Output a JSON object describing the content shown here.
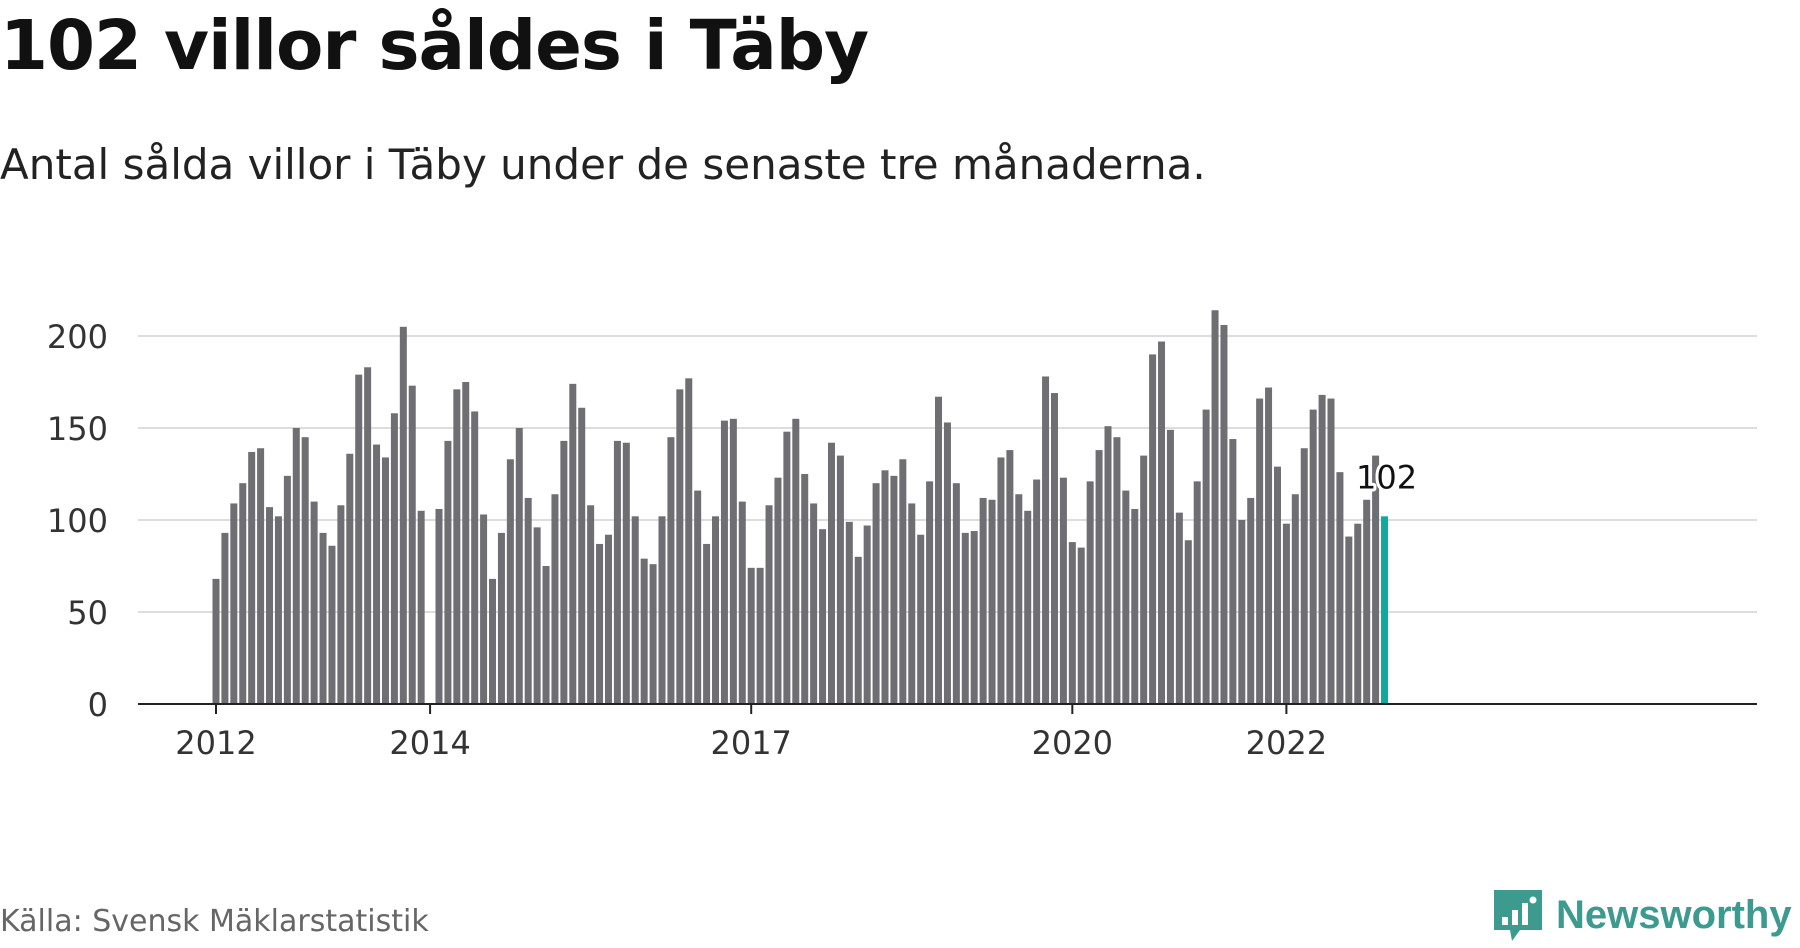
{
  "title": "102 villor såldes i Täby",
  "subtitle": "Antal sålda villor i Täby under de senaste tre månaderna.",
  "source": "Källa: Svensk Mäklarstatistik",
  "brand": {
    "name": "Newsworthy",
    "icon": "newsworthy-logo-icon",
    "color": "#3d9a8f"
  },
  "colors": {
    "bar": "#6e6e73",
    "highlight": "#13a89b",
    "grid": "#dddddd",
    "axis": "#222222"
  },
  "chart_data": {
    "type": "bar",
    "x_start": "2012-01",
    "x_interval": "month",
    "x_ticks": [
      "2012",
      "2014",
      "2017",
      "2020",
      "2022"
    ],
    "x_tick_positions": [
      "2012-01",
      "2014-01",
      "2017-01",
      "2020-01",
      "2022-01"
    ],
    "ylim": [
      0,
      220
    ],
    "y_ticks": [
      0,
      50,
      100,
      150,
      200
    ],
    "grid": true,
    "values": [
      68,
      93,
      109,
      120,
      137,
      139,
      107,
      102,
      124,
      150,
      145,
      110,
      93,
      86,
      108,
      136,
      179,
      183,
      141,
      134,
      158,
      205,
      173,
      105,
      null,
      106,
      143,
      171,
      175,
      159,
      103,
      68,
      93,
      133,
      150,
      112,
      96,
      75,
      114,
      143,
      174,
      161,
      108,
      87,
      92,
      143,
      142,
      102,
      79,
      76,
      102,
      145,
      171,
      177,
      116,
      87,
      102,
      154,
      155,
      110,
      74,
      74,
      108,
      123,
      148,
      155,
      125,
      109,
      95,
      142,
      135,
      99,
      80,
      97,
      120,
      127,
      124,
      133,
      109,
      92,
      121,
      167,
      153,
      120,
      93,
      94,
      112,
      111,
      134,
      138,
      114,
      105,
      122,
      178,
      169,
      123,
      88,
      85,
      121,
      138,
      151,
      145,
      116,
      106,
      135,
      190,
      197,
      149,
      104,
      89,
      121,
      160,
      214,
      206,
      144,
      100,
      112,
      166,
      172,
      129,
      98,
      114,
      139,
      160,
      168,
      166,
      126,
      91,
      98,
      111,
      135,
      102
    ],
    "highlight_index": 131,
    "annotation": "102"
  }
}
